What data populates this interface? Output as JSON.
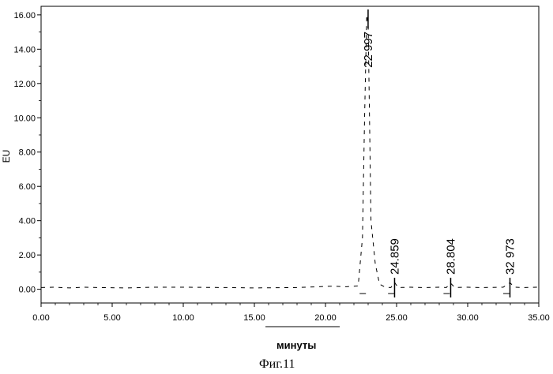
{
  "chart_data": {
    "type": "line",
    "title": "",
    "xlabel": "минуты",
    "ylabel": "EU",
    "xlim": [
      0,
      35
    ],
    "ylim": [
      -80,
      1650
    ],
    "x_ticks": [
      0,
      5,
      10,
      15,
      20,
      25,
      30,
      35
    ],
    "x_tick_labels": [
      "0.00",
      "5.00",
      "10.00",
      "15.00",
      "20.00",
      "25.00",
      "30.00",
      "35.00"
    ],
    "y_ticks": [
      0,
      200,
      400,
      600,
      800,
      1000,
      1200,
      1400,
      1600
    ],
    "y_tick_labels": [
      "0.00",
      "2.00",
      "4.00",
      "6.00",
      "8.00",
      "10.00",
      "12.00",
      "14.00",
      "16.00"
    ],
    "grid": false,
    "series": [
      {
        "values": [
          [
            0.0,
            10
          ],
          [
            1.0,
            12
          ],
          [
            2.0,
            8
          ],
          [
            3.0,
            12
          ],
          [
            4.0,
            10
          ],
          [
            6.0,
            8
          ],
          [
            8.0,
            12
          ],
          [
            10.0,
            12
          ],
          [
            13.0,
            10
          ],
          [
            15.0,
            8
          ],
          [
            18.0,
            10
          ],
          [
            20.5,
            18
          ],
          [
            21.5,
            15
          ],
          [
            22.3,
            20
          ],
          [
            22.6,
            300
          ],
          [
            22.75,
            1000
          ],
          [
            22.9,
            1600
          ],
          [
            23.0,
            1550
          ],
          [
            23.2,
            400
          ],
          [
            23.5,
            150
          ],
          [
            23.8,
            30
          ],
          [
            24.2,
            12
          ],
          [
            24.6,
            10
          ],
          [
            24.86,
            40
          ],
          [
            25.1,
            10
          ],
          [
            26.0,
            12
          ],
          [
            27.0,
            10
          ],
          [
            28.0,
            12
          ],
          [
            28.5,
            10
          ],
          [
            28.8,
            35
          ],
          [
            29.1,
            10
          ],
          [
            30.0,
            12
          ],
          [
            31.0,
            10
          ],
          [
            32.5,
            12
          ],
          [
            32.97,
            38
          ],
          [
            33.3,
            12
          ],
          [
            34.0,
            10
          ],
          [
            35.0,
            12
          ]
        ]
      }
    ],
    "peaks": [
      {
        "time": 22.997,
        "label": "22 997"
      },
      {
        "time": 24.859,
        "label": "24.859"
      },
      {
        "time": 28.804,
        "label": "28.804"
      },
      {
        "time": 32.973,
        "label": "32 973"
      }
    ]
  },
  "caption": "Фиг.11"
}
